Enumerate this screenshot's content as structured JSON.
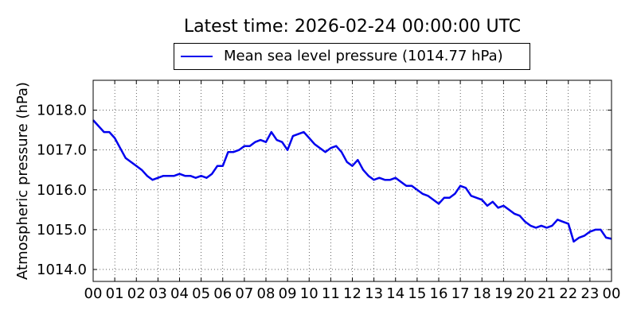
{
  "chart_data": {
    "type": "line",
    "title": "Latest time: 2026-02-24 00:00:00 UTC",
    "xlabel": "",
    "ylabel": "Atmospheric pressure (hPa)",
    "x_tick_labels": [
      "00",
      "01",
      "02",
      "03",
      "04",
      "05",
      "06",
      "07",
      "08",
      "09",
      "10",
      "11",
      "12",
      "13",
      "14",
      "15",
      "16",
      "17",
      "18",
      "19",
      "20",
      "21",
      "22",
      "23",
      "00"
    ],
    "y_tick_labels": [
      "1014.0",
      "1015.0",
      "1016.0",
      "1017.0",
      "1018.0"
    ],
    "xlim": [
      0,
      24
    ],
    "ylim": [
      1013.7,
      1018.75
    ],
    "grid": true,
    "legend_position": "top-center",
    "series": [
      {
        "name": "Mean sea level pressure (1014.77 hPa)",
        "color": "#0000ee",
        "x": [
          0,
          0.25,
          0.5,
          0.75,
          1,
          1.25,
          1.5,
          1.75,
          2,
          2.25,
          2.5,
          2.75,
          3,
          3.25,
          3.5,
          3.75,
          4,
          4.25,
          4.5,
          4.75,
          5,
          5.25,
          5.5,
          5.75,
          6,
          6.25,
          6.5,
          6.75,
          7,
          7.25,
          7.5,
          7.75,
          8,
          8.25,
          8.5,
          8.75,
          9,
          9.25,
          9.5,
          9.75,
          10,
          10.25,
          10.5,
          10.75,
          11,
          11.25,
          11.5,
          11.75,
          12,
          12.25,
          12.5,
          12.75,
          13,
          13.25,
          13.5,
          13.75,
          14,
          14.25,
          14.5,
          14.75,
          15,
          15.25,
          15.5,
          15.75,
          16,
          16.25,
          16.5,
          16.75,
          17,
          17.25,
          17.5,
          17.75,
          18,
          18.25,
          18.5,
          18.75,
          19,
          19.25,
          19.5,
          19.75,
          20,
          20.25,
          20.5,
          20.75,
          21,
          21.25,
          21.5,
          21.75,
          22,
          22.25,
          22.5,
          22.75,
          23,
          23.25,
          23.5,
          23.75,
          24
        ],
        "values": [
          1017.75,
          1017.6,
          1017.45,
          1017.45,
          1017.3,
          1017.05,
          1016.8,
          1016.7,
          1016.6,
          1016.5,
          1016.35,
          1016.25,
          1016.3,
          1016.35,
          1016.35,
          1016.35,
          1016.4,
          1016.35,
          1016.35,
          1016.3,
          1016.35,
          1016.3,
          1016.4,
          1016.6,
          1016.6,
          1016.95,
          1016.95,
          1017.0,
          1017.1,
          1017.1,
          1017.2,
          1017.25,
          1017.2,
          1017.45,
          1017.25,
          1017.2,
          1017.0,
          1017.35,
          1017.4,
          1017.45,
          1017.3,
          1017.15,
          1017.05,
          1016.95,
          1017.05,
          1017.1,
          1016.95,
          1016.7,
          1016.6,
          1016.75,
          1016.5,
          1016.35,
          1016.25,
          1016.3,
          1016.25,
          1016.25,
          1016.3,
          1016.2,
          1016.1,
          1016.1,
          1016.0,
          1015.9,
          1015.85,
          1015.75,
          1015.65,
          1015.8,
          1015.8,
          1015.9,
          1016.1,
          1016.05,
          1015.85,
          1015.8,
          1015.75,
          1015.6,
          1015.7,
          1015.55,
          1015.6,
          1015.5,
          1015.4,
          1015.35,
          1015.2,
          1015.1,
          1015.05,
          1015.1,
          1015.05,
          1015.1,
          1015.25,
          1015.2,
          1015.15,
          1014.7,
          1014.8,
          1014.85,
          1014.95,
          1015.0,
          1015.0,
          1014.8,
          1014.77
        ]
      }
    ]
  }
}
